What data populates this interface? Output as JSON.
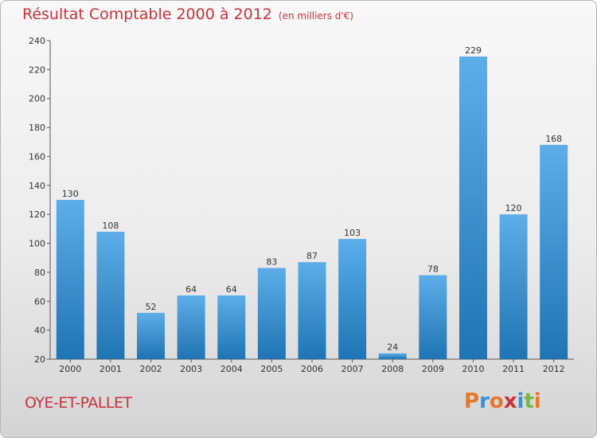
{
  "header": {
    "title": "Résultat Comptable 2000 à 2012",
    "subtitle": "(en milliers d'€)"
  },
  "footer": {
    "commune": "OYE-ET-PALLET",
    "brand": "Proxiti"
  },
  "colors": {
    "title": "#c8323c",
    "bar_top": "#5daee8",
    "bar_bottom": "#1f74b3",
    "brand_letters": [
      "#e8762c",
      "#3b8fd4",
      "#e8762c",
      "#c8323c",
      "#3b8fd4",
      "#7cb342",
      "#e8762c"
    ]
  },
  "chart_data": {
    "type": "bar",
    "title": "Résultat Comptable 2000 à 2012",
    "subtitle": "(en milliers d'€)",
    "xlabel": "",
    "ylabel": "",
    "categories": [
      "2000",
      "2001",
      "2002",
      "2003",
      "2004",
      "2005",
      "2006",
      "2007",
      "2008",
      "2009",
      "2010",
      "2011",
      "2012"
    ],
    "values": [
      130,
      108,
      52,
      64,
      64,
      83,
      87,
      103,
      24,
      78,
      229,
      120,
      168
    ],
    "ylim": [
      20,
      240
    ],
    "yticks": [
      20,
      40,
      60,
      80,
      100,
      120,
      140,
      160,
      180,
      200,
      220,
      240
    ],
    "grid": false,
    "legend": "none"
  }
}
